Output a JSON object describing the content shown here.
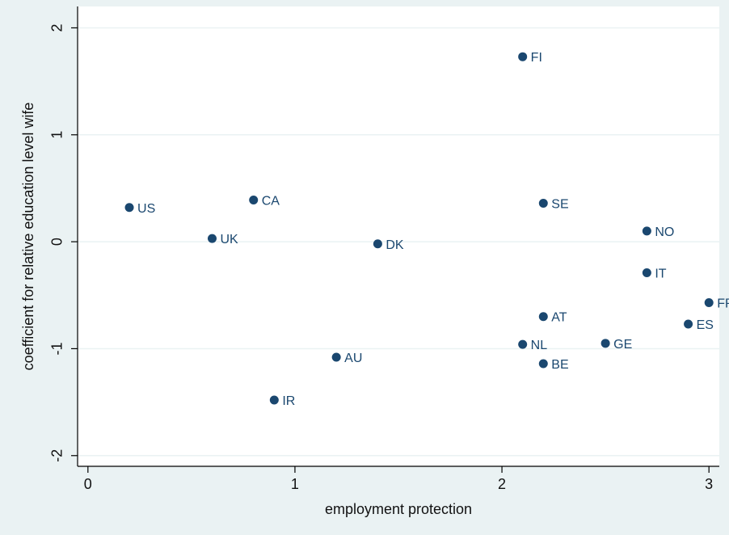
{
  "chart_data": {
    "type": "scatter",
    "xlabel": "employment protection",
    "ylabel": "coefficient for relative education level wife",
    "xlim": [
      -0.05,
      3.05
    ],
    "ylim": [
      -2.1,
      2.2
    ],
    "xticks": [
      0,
      1,
      2,
      3
    ],
    "xtick_labels": [
      "0",
      "1",
      "2",
      "3"
    ],
    "yticks": [
      -2,
      -1,
      0,
      1,
      2
    ],
    "ytick_labels": [
      "-2",
      "-1",
      "0",
      "1",
      "2"
    ],
    "grid": true,
    "marker_color": "#1a476f",
    "gridline_color": "#eaf2f3",
    "points": [
      {
        "label": "FI",
        "x": 2.1,
        "y": 1.73
      },
      {
        "label": "US",
        "x": 0.2,
        "y": 0.32
      },
      {
        "label": "CA",
        "x": 0.8,
        "y": 0.39
      },
      {
        "label": "SE",
        "x": 2.2,
        "y": 0.36
      },
      {
        "label": "UK",
        "x": 0.6,
        "y": 0.03
      },
      {
        "label": "DK",
        "x": 1.4,
        "y": -0.02
      },
      {
        "label": "NO",
        "x": 2.7,
        "y": 0.1
      },
      {
        "label": "IT",
        "x": 2.7,
        "y": -0.29
      },
      {
        "label": "FR",
        "x": 3.0,
        "y": -0.57
      },
      {
        "label": "AT",
        "x": 2.2,
        "y": -0.7
      },
      {
        "label": "ES",
        "x": 2.9,
        "y": -0.77
      },
      {
        "label": "NL",
        "x": 2.1,
        "y": -0.96
      },
      {
        "label": "GE",
        "x": 2.5,
        "y": -0.95
      },
      {
        "label": "AU",
        "x": 1.2,
        "y": -1.08
      },
      {
        "label": "BE",
        "x": 2.2,
        "y": -1.14
      },
      {
        "label": "IR",
        "x": 0.9,
        "y": -1.48
      }
    ]
  }
}
